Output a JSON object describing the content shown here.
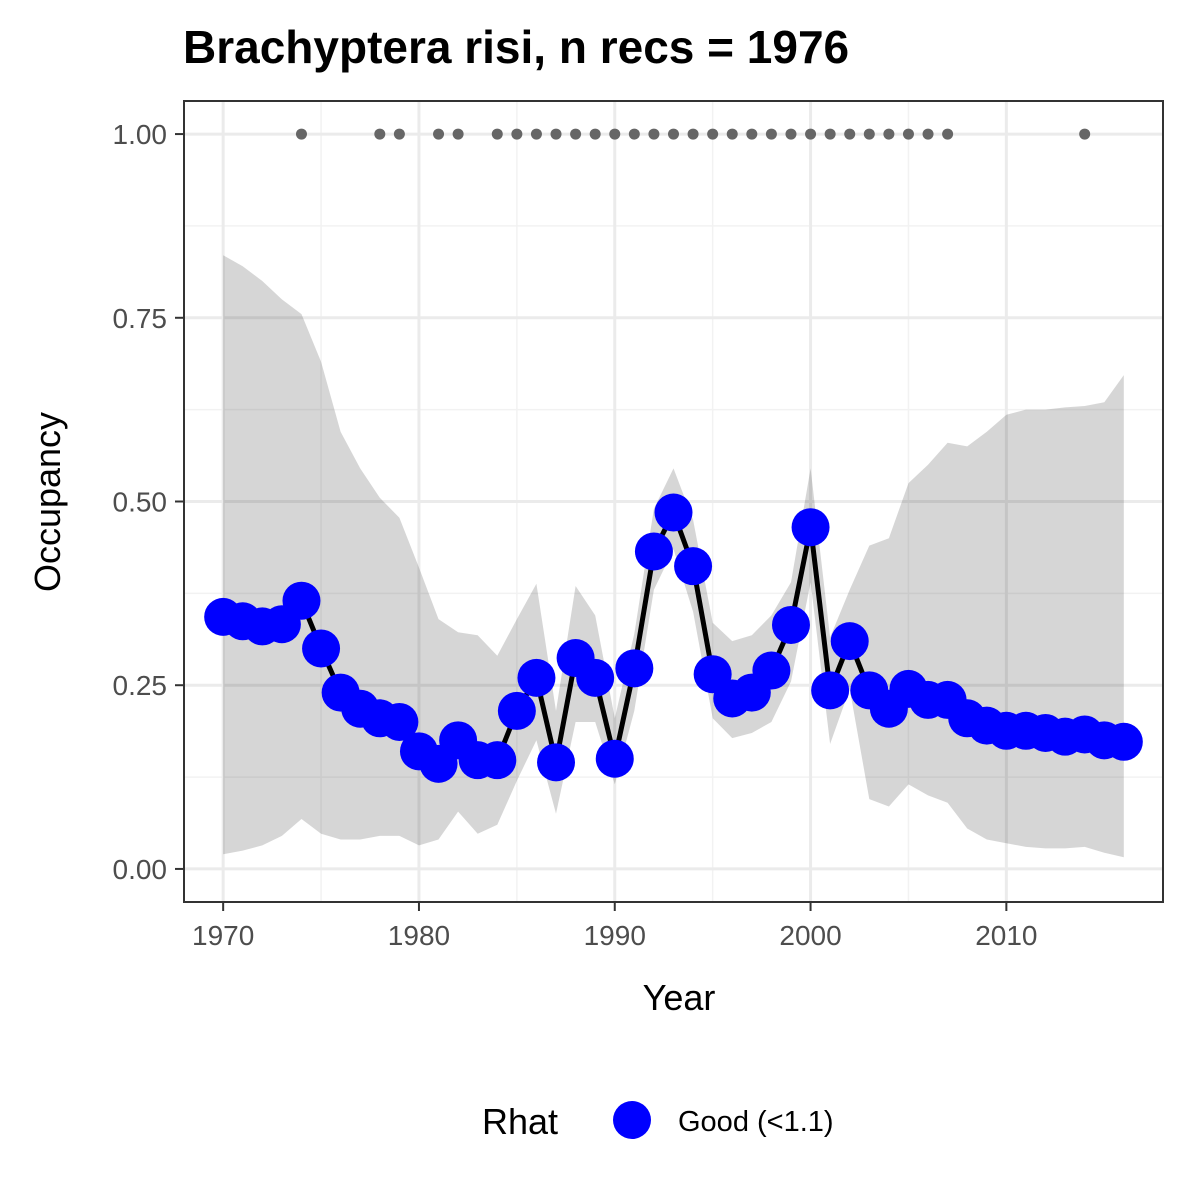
{
  "chart_data": {
    "type": "line",
    "title": "Brachyptera risi, n recs = 1976",
    "xlabel": "Year",
    "ylabel": "Occupancy",
    "xlim": [
      1968,
      2018
    ],
    "ylim": [
      -0.045,
      1.045
    ],
    "x_ticks": [
      1970,
      1980,
      1990,
      2000,
      2010
    ],
    "y_ticks": [
      0.0,
      0.25,
      0.5,
      0.75,
      1.0
    ],
    "x_tick_labels": [
      "1970",
      "1980",
      "1990",
      "2000",
      "2010"
    ],
    "y_tick_labels": [
      "0.00",
      "0.25",
      "0.50",
      "0.75",
      "1.00"
    ],
    "grid": true,
    "legend": {
      "title": "Rhat",
      "position": "bottom",
      "entries": [
        {
          "label": "Good (<1.1)",
          "color": "#0000ff"
        }
      ]
    },
    "colors": {
      "points": "#0000ff",
      "line": "#000000",
      "ribbon": "#d6d6d6",
      "records": "#666666"
    },
    "series": [
      {
        "type": "line-points",
        "x": [
          1970,
          1971,
          1972,
          1973,
          1974,
          1975,
          1976,
          1977,
          1978,
          1979,
          1980,
          1981,
          1982,
          1983,
          1984,
          1985,
          1986,
          1987,
          1988,
          1989,
          1990,
          1991,
          1992,
          1993,
          1994,
          1995,
          1996,
          1997,
          1998,
          1999,
          2000,
          2001,
          2002,
          2003,
          2004,
          2005,
          2006,
          2007,
          2008,
          2009,
          2010,
          2011,
          2012,
          2013,
          2014,
          2015,
          2016
        ],
        "y": [
          0.343,
          0.337,
          0.33,
          0.333,
          0.365,
          0.3,
          0.24,
          0.218,
          0.205,
          0.2,
          0.16,
          0.143,
          0.175,
          0.148,
          0.148,
          0.215,
          0.26,
          0.145,
          0.287,
          0.26,
          0.15,
          0.273,
          0.432,
          0.485,
          0.412,
          0.265,
          0.232,
          0.24,
          0.27,
          0.332,
          0.465,
          0.243,
          0.31,
          0.243,
          0.218,
          0.245,
          0.23,
          0.23,
          0.205,
          0.195,
          0.188,
          0.188,
          0.185,
          0.18,
          0.183,
          0.175,
          0.173
        ]
      },
      {
        "type": "ribbon",
        "x": [
          1970,
          1971,
          1972,
          1973,
          1974,
          1975,
          1976,
          1977,
          1978,
          1979,
          1980,
          1981,
          1982,
          1983,
          1984,
          1985,
          1986,
          1987,
          1988,
          1989,
          1990,
          1991,
          1992,
          1993,
          1994,
          1995,
          1996,
          1997,
          1998,
          1999,
          2000,
          2001,
          2002,
          2003,
          2004,
          2005,
          2006,
          2007,
          2008,
          2009,
          2010,
          2011,
          2012,
          2013,
          2014,
          2015,
          2016
        ],
        "lower": [
          0.02,
          0.025,
          0.032,
          0.045,
          0.068,
          0.048,
          0.04,
          0.04,
          0.045,
          0.045,
          0.032,
          0.04,
          0.078,
          0.048,
          0.06,
          0.12,
          0.175,
          0.075,
          0.2,
          0.2,
          0.115,
          0.215,
          0.38,
          0.435,
          0.35,
          0.205,
          0.178,
          0.185,
          0.2,
          0.255,
          0.39,
          0.17,
          0.245,
          0.095,
          0.085,
          0.115,
          0.1,
          0.09,
          0.055,
          0.04,
          0.035,
          0.03,
          0.028,
          0.028,
          0.03,
          0.022,
          0.016
        ],
        "upper": [
          0.835,
          0.82,
          0.8,
          0.775,
          0.755,
          0.69,
          0.595,
          0.545,
          0.505,
          0.478,
          0.41,
          0.34,
          0.322,
          0.318,
          0.29,
          0.34,
          0.388,
          0.215,
          0.385,
          0.345,
          0.205,
          0.32,
          0.49,
          0.545,
          0.475,
          0.335,
          0.31,
          0.318,
          0.345,
          0.39,
          0.545,
          0.315,
          0.38,
          0.44,
          0.45,
          0.525,
          0.55,
          0.58,
          0.575,
          0.595,
          0.618,
          0.625,
          0.625,
          0.628,
          0.63,
          0.635,
          0.672
        ]
      },
      {
        "type": "records",
        "x": [
          1974,
          1978,
          1979,
          1981,
          1982,
          1984,
          1985,
          1986,
          1987,
          1988,
          1989,
          1990,
          1991,
          1992,
          1993,
          1994,
          1995,
          1996,
          1997,
          1998,
          1999,
          2000,
          2001,
          2002,
          2003,
          2004,
          2005,
          2006,
          2007,
          2014
        ],
        "y": [
          1,
          1,
          1,
          1,
          1,
          1,
          1,
          1,
          1,
          1,
          1,
          1,
          1,
          1,
          1,
          1,
          1,
          1,
          1,
          1,
          1,
          1,
          1,
          1,
          1,
          1,
          1,
          1,
          1,
          1
        ]
      }
    ]
  }
}
